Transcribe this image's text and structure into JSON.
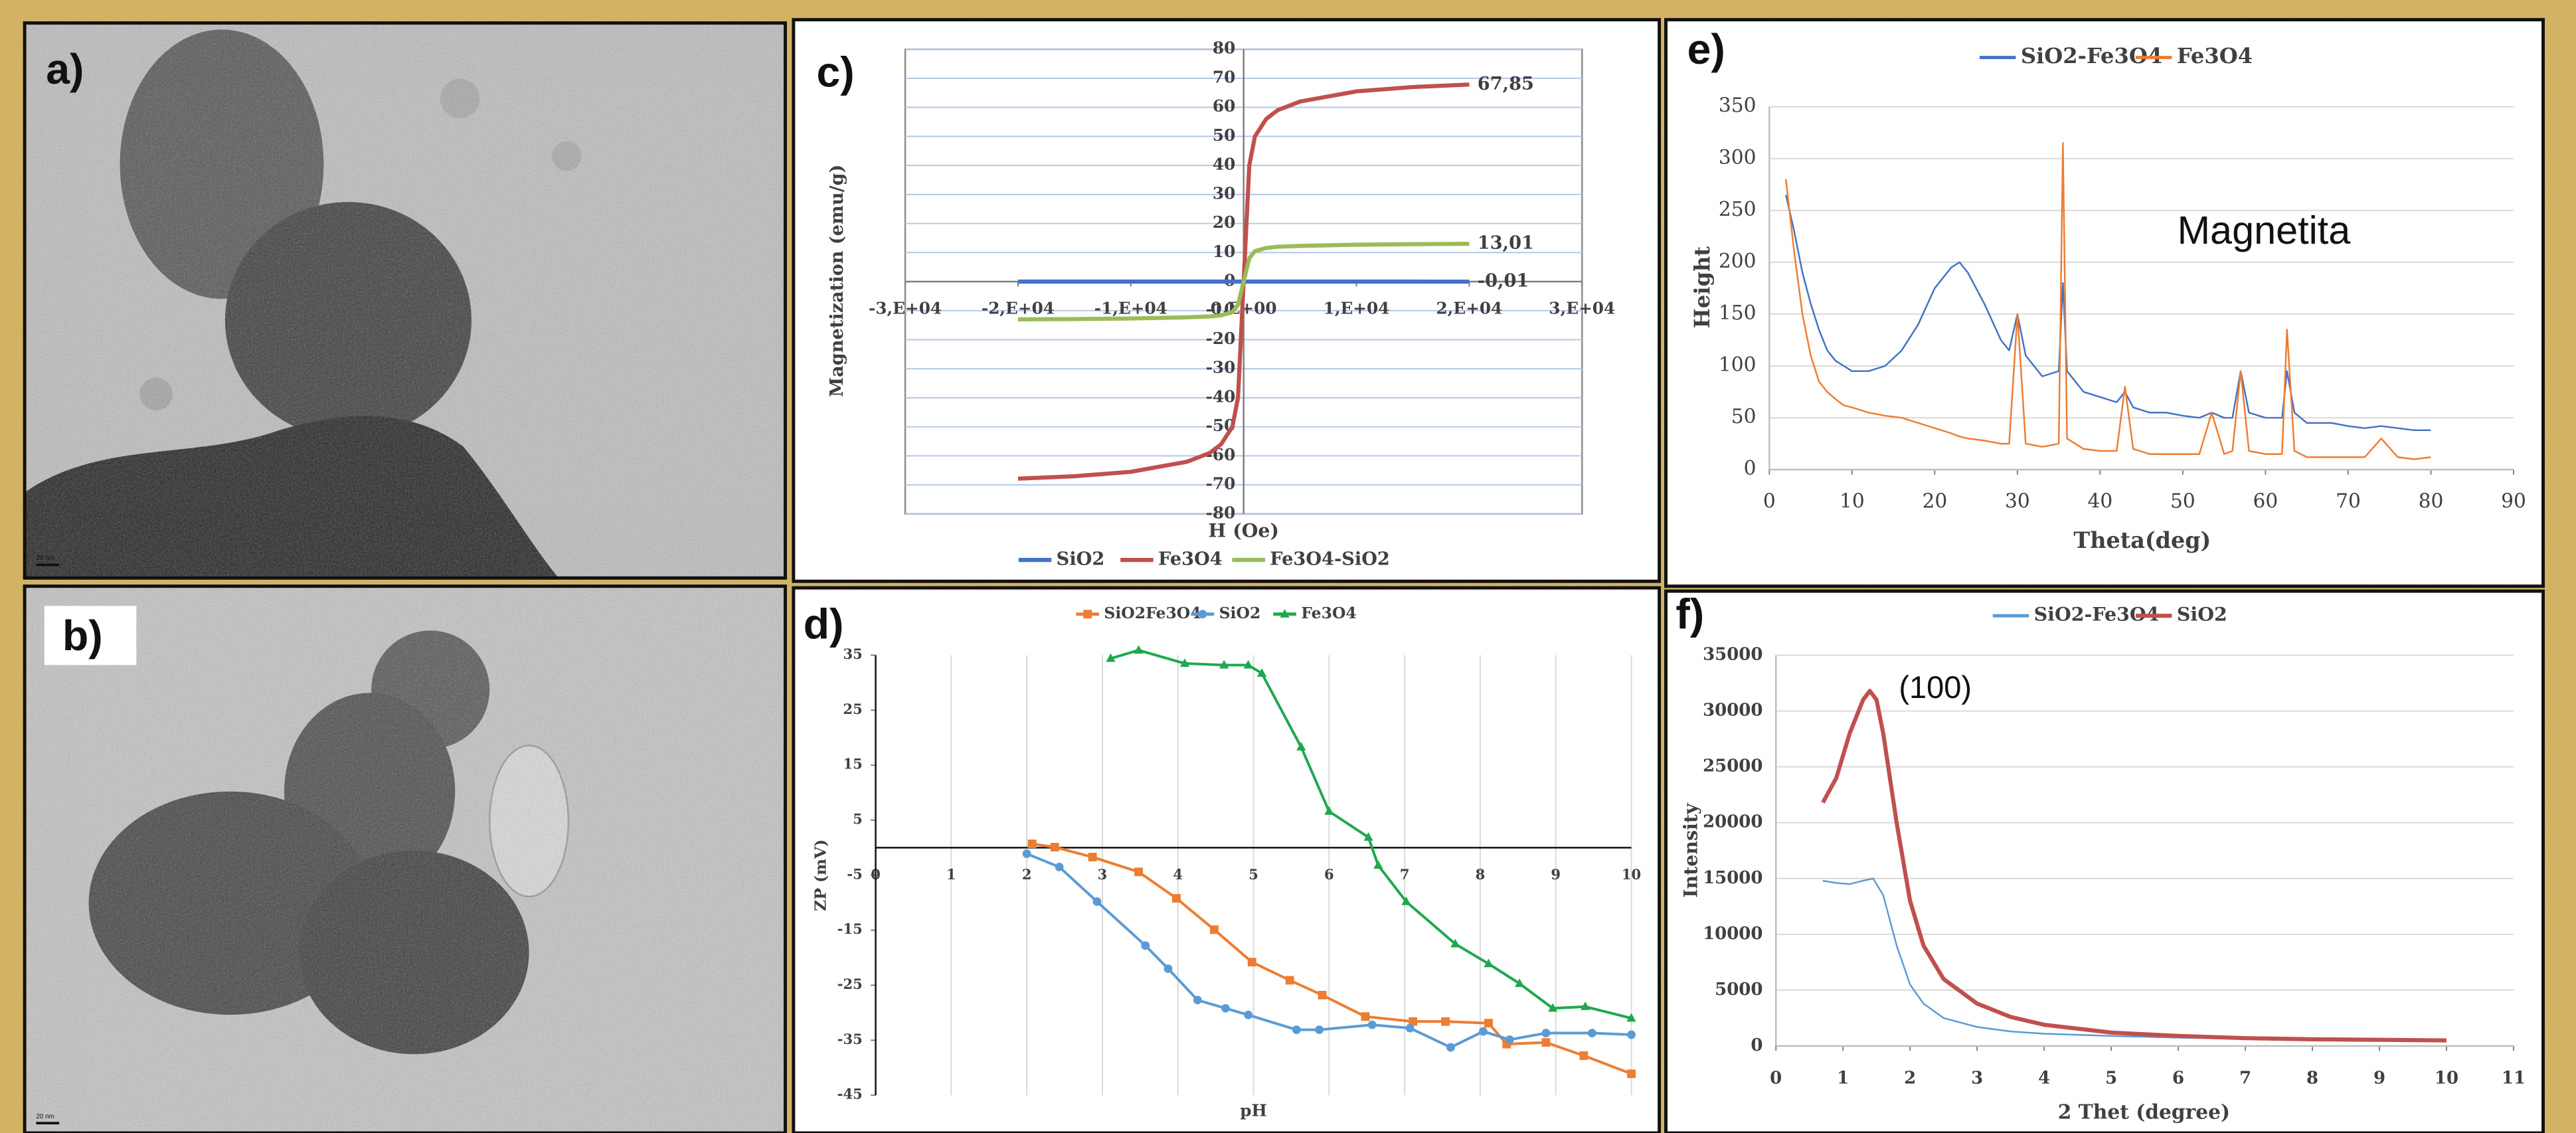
{
  "images": [
    {
      "label": "a)",
      "scale": "20 nm"
    },
    {
      "label": "b)",
      "scale": "20 nm"
    }
  ],
  "chart_data": [
    {
      "type": "line",
      "label": "c)",
      "xlabel": "H (Oe)",
      "ylabel": "Magnetization (emu/g)",
      "x": [
        -20000,
        -15000,
        -10000,
        -5000,
        -3000,
        -2000,
        -1000,
        -500,
        0,
        500,
        1000,
        2000,
        3000,
        5000,
        10000,
        15000,
        20000
      ],
      "xlim": [
        -30000,
        30000
      ],
      "xticks": [
        {
          "value": -30000,
          "label": "-3,E+04"
        },
        {
          "value": -20000,
          "label": "-2,E+04"
        },
        {
          "value": -10000,
          "label": "-1,E+04"
        },
        {
          "value": 0,
          "label": "0,E+00"
        },
        {
          "value": 10000,
          "label": "1,E+04"
        },
        {
          "value": 20000,
          "label": "2,E+04"
        },
        {
          "value": 30000,
          "label": "3,E+04"
        }
      ],
      "ylim": [
        -80,
        80
      ],
      "yticks": [
        -80,
        -70,
        -60,
        -50,
        -40,
        -30,
        -20,
        -10,
        0,
        10,
        20,
        30,
        40,
        50,
        60,
        70,
        80
      ],
      "grid": true,
      "legend": "bottom",
      "series": [
        {
          "name": "SiO2",
          "color": "#4472c4",
          "values": [
            0,
            0,
            0,
            0,
            0,
            0,
            0,
            0,
            0,
            0,
            0,
            0,
            0,
            0,
            0,
            0,
            -0.01
          ],
          "value_labels": [
            null,
            null,
            null,
            null,
            null,
            null,
            null,
            null,
            null,
            null,
            null,
            null,
            null,
            null,
            null,
            null,
            "-0,01"
          ]
        },
        {
          "name": "Fe3O4",
          "color": "#c0504d",
          "values": [
            -67.85,
            -67,
            -65.5,
            -62,
            -59,
            -56,
            -50,
            -40,
            0,
            40,
            50,
            56,
            59,
            62,
            65.5,
            67,
            67.85
          ],
          "value_labels": [
            null,
            null,
            null,
            null,
            null,
            null,
            null,
            null,
            null,
            null,
            null,
            null,
            null,
            null,
            null,
            null,
            "67,85"
          ]
        },
        {
          "name": "Fe3O4-SiO2",
          "color": "#9bbb59",
          "values": [
            -13,
            -12.9,
            -12.7,
            -12.3,
            -12,
            -11.6,
            -10.5,
            -8,
            0,
            8,
            10.5,
            11.6,
            12,
            12.3,
            12.7,
            12.9,
            13.01
          ],
          "value_labels": [
            null,
            null,
            null,
            null,
            null,
            null,
            null,
            null,
            null,
            null,
            null,
            null,
            null,
            null,
            null,
            null,
            "13,01"
          ]
        }
      ]
    },
    {
      "type": "line",
      "label": "d)",
      "xlabel": "pH",
      "ylabel": "ZP (mV)",
      "xlim": [
        0,
        10
      ],
      "xticks": [
        0,
        1,
        2,
        3,
        4,
        5,
        6,
        7,
        8,
        9,
        10
      ],
      "ylim": [
        -45,
        35
      ],
      "yticks": [
        -45,
        -35,
        -25,
        -15,
        -5,
        5,
        15,
        25,
        35
      ],
      "grid": true,
      "legend": "top",
      "markers": true,
      "series": [
        {
          "name": "SiO2Fe3O4",
          "color": "#ed7d31",
          "marker": "square",
          "x": [
            2.07,
            2.37,
            2.87,
            3.48,
            3.98,
            4.48,
            4.98,
            5.48,
            5.91,
            6.48,
            7.11,
            7.54,
            8.11,
            8.35,
            8.87,
            9.37,
            10
          ],
          "values": [
            0.7,
            0.1,
            -1.7,
            -4.4,
            -9.2,
            -14.9,
            -20.8,
            -24.1,
            -26.8,
            -30.7,
            -31.6,
            -31.6,
            -31.9,
            -35.7,
            -35.4,
            -37.8,
            -41.1
          ]
        },
        {
          "name": "SiO2",
          "color": "#5b9bd5",
          "marker": "circle",
          "x": [
            2.0,
            2.43,
            2.93,
            3.57,
            3.87,
            4.26,
            4.63,
            4.93,
            5.57,
            5.87,
            6.57,
            7.07,
            7.61,
            8.04,
            8.39,
            8.87,
            9.48,
            10
          ],
          "values": [
            -1.1,
            -3.5,
            -9.8,
            -17.8,
            -22,
            -27.7,
            -29.2,
            -30.4,
            -33.1,
            -33.1,
            -32.2,
            -32.8,
            -36.3,
            -33.4,
            -34.9,
            -33.7,
            -33.7,
            -34
          ]
        },
        {
          "name": "Fe3O4",
          "color": "#1fa84f",
          "marker": "triangle",
          "x": [
            3.11,
            3.48,
            4.09,
            4.61,
            4.93,
            5.11,
            5.63,
            6.0,
            6.52,
            6.65,
            7.02,
            7.67,
            8.11,
            8.52,
            8.96,
            9.39,
            10
          ],
          "values": [
            34.4,
            35.9,
            33.5,
            33.2,
            33.2,
            31.7,
            18.3,
            6.6,
            1.9,
            -3.2,
            -9.8,
            -17.5,
            -21.1,
            -24.7,
            -29.2,
            -28.9,
            -31
          ]
        }
      ]
    },
    {
      "type": "line",
      "label": "e)",
      "xlabel": "Theta(deg)",
      "ylabel": "Height",
      "annotation": "Magnetita",
      "x": [
        2,
        3,
        4,
        5,
        6,
        7,
        8,
        9,
        10,
        12,
        14,
        16,
        18,
        20,
        22,
        23,
        24,
        26,
        28,
        29,
        30,
        31,
        33,
        35,
        35.5,
        36,
        38,
        40,
        42,
        43,
        44,
        46,
        48,
        50,
        52,
        53.5,
        55,
        56,
        57,
        58,
        60,
        62,
        62.6,
        63.5,
        65,
        68,
        70,
        72,
        74,
        76,
        78,
        80
      ],
      "xlim": [
        0,
        90
      ],
      "xticks": [
        0,
        10,
        20,
        30,
        40,
        50,
        60,
        70,
        80,
        90
      ],
      "ylim": [
        0,
        350
      ],
      "yticks": [
        0,
        50,
        100,
        150,
        200,
        250,
        300,
        350
      ],
      "grid": true,
      "legend": "top",
      "series": [
        {
          "name": "SiO2-Fe3O4",
          "color": "#4472c4",
          "values": [
            265,
            230,
            190,
            160,
            135,
            115,
            105,
            100,
            95,
            95,
            100,
            115,
            140,
            175,
            195,
            200,
            190,
            160,
            125,
            115,
            150,
            110,
            90,
            95,
            180,
            95,
            75,
            70,
            65,
            75,
            60,
            55,
            55,
            52,
            50,
            55,
            50,
            50,
            95,
            55,
            50,
            50,
            95,
            55,
            45,
            45,
            42,
            40,
            42,
            40,
            38,
            38
          ]
        },
        {
          "name": "Fe3O4",
          "color": "#ed7d31",
          "values": [
            280,
            210,
            150,
            110,
            85,
            75,
            68,
            62,
            60,
            55,
            52,
            50,
            45,
            40,
            35,
            32,
            30,
            28,
            25,
            25,
            150,
            25,
            22,
            25,
            315,
            30,
            20,
            18,
            18,
            80,
            20,
            15,
            15,
            15,
            15,
            55,
            15,
            18,
            95,
            18,
            15,
            15,
            135,
            18,
            12,
            12,
            12,
            12,
            30,
            12,
            10,
            12
          ]
        }
      ]
    },
    {
      "type": "line",
      "label": "f)",
      "xlabel": "2 Thet (degree)",
      "ylabel": "Intensity",
      "annotation": "(100)",
      "xlim": [
        0,
        11
      ],
      "xticks": [
        0,
        1,
        2,
        3,
        4,
        5,
        6,
        7,
        8,
        9,
        10,
        11
      ],
      "ylim": [
        0,
        35000
      ],
      "yticks": [
        0,
        5000,
        10000,
        15000,
        20000,
        25000,
        30000,
        35000
      ],
      "grid": true,
      "legend": "top",
      "series": [
        {
          "name": "SiO2-Fe3O4",
          "color": "#5b9bd5",
          "x": [
            0.7,
            0.9,
            1.1,
            1.3,
            1.45,
            1.6,
            1.8,
            2,
            2.2,
            2.5,
            3,
            3.5,
            4,
            5,
            6,
            7,
            8,
            9,
            10
          ],
          "values": [
            14800,
            14600,
            14500,
            14800,
            15000,
            13500,
            9000,
            5500,
            3800,
            2500,
            1700,
            1300,
            1100,
            900,
            750,
            650,
            600,
            550,
            500
          ]
        },
        {
          "name": "SiO2",
          "color": "#c0504d",
          "x": [
            0.7,
            0.9,
            1.1,
            1.3,
            1.4,
            1.5,
            1.6,
            1.8,
            2,
            2.2,
            2.5,
            3,
            3.5,
            4,
            5,
            6,
            7,
            8,
            9,
            10
          ],
          "values": [
            21800,
            24000,
            28000,
            31000,
            31800,
            31000,
            28000,
            20000,
            13000,
            9000,
            6000,
            3800,
            2600,
            1900,
            1200,
            900,
            700,
            600,
            550,
            500
          ]
        }
      ]
    }
  ]
}
